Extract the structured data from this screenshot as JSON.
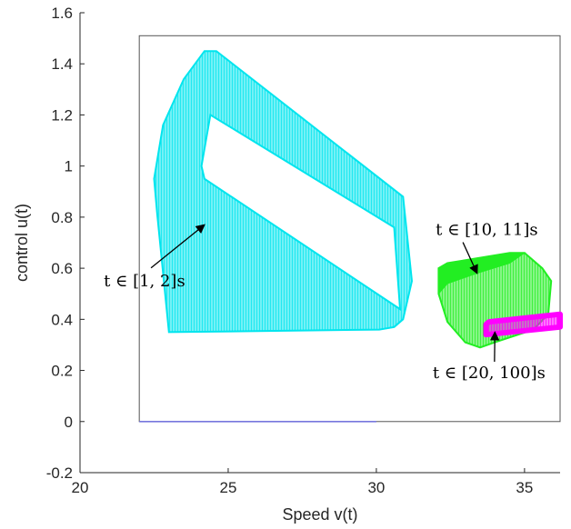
{
  "chart_data": {
    "type": "area",
    "title": "",
    "xlabel": "Speed v(t)",
    "ylabel": "control u(t)",
    "xlim": [
      20,
      36.2
    ],
    "ylim": [
      -0.2,
      1.6
    ],
    "xticks": [
      20,
      25,
      30,
      35
    ],
    "yticks": [
      -0.2,
      0,
      0.2,
      0.4,
      0.6,
      0.8,
      1,
      1.2,
      1.4,
      1.6
    ],
    "grid": false,
    "inner_box": {
      "x": [
        22,
        36.2
      ],
      "y": [
        0,
        1.51
      ]
    },
    "regions": [
      {
        "label": "t ∈ [1, 2]s",
        "color": "#00e5ee",
        "outline": [
          [
            22.6,
            0.82
          ],
          [
            22.5,
            0.95
          ],
          [
            22.8,
            1.16
          ],
          [
            23.5,
            1.34
          ],
          [
            24.2,
            1.45
          ],
          [
            24.6,
            1.45
          ],
          [
            30.9,
            0.88
          ],
          [
            31.2,
            0.55
          ],
          [
            30.9,
            0.4
          ],
          [
            30.6,
            0.37
          ],
          [
            30.1,
            0.36
          ],
          [
            23.0,
            0.35
          ]
        ],
        "hole": [
          [
            24.1,
            1.0
          ],
          [
            24.2,
            0.95
          ],
          [
            30.8,
            0.44
          ],
          [
            30.6,
            0.76
          ],
          [
            24.4,
            1.2
          ]
        ],
        "annotation_point": [
          24.2,
          0.77
        ],
        "label_position": [
          20.8,
          0.53
        ]
      },
      {
        "label": "t ∈ [10, 11]s",
        "color": "#22ee22",
        "outline": [
          [
            32.1,
            0.6
          ],
          [
            32.1,
            0.5
          ],
          [
            32.4,
            0.39
          ],
          [
            33.0,
            0.31
          ],
          [
            33.5,
            0.29
          ],
          [
            34.0,
            0.31
          ],
          [
            35.3,
            0.36
          ],
          [
            35.8,
            0.42
          ],
          [
            35.9,
            0.55
          ],
          [
            35.6,
            0.6
          ],
          [
            35.0,
            0.66
          ],
          [
            34.5,
            0.66
          ],
          [
            32.4,
            0.62
          ]
        ],
        "band_point": [
          33.4,
          0.62
        ],
        "annotation_point": [
          33.4,
          0.58
        ],
        "label_position": [
          32.0,
          0.73
        ]
      },
      {
        "label": "t ∈ [20, 100]s",
        "color": "#ff00ff",
        "outline": [
          [
            33.7,
            0.38
          ],
          [
            33.7,
            0.34
          ],
          [
            36.2,
            0.37
          ],
          [
            36.2,
            0.42
          ],
          [
            33.8,
            0.39
          ]
        ],
        "annotation_point": [
          34.0,
          0.35
        ],
        "label_position": [
          31.9,
          0.17
        ]
      }
    ],
    "baseline": {
      "x": [
        22,
        30
      ],
      "y": 0,
      "color": "#7777dd"
    }
  }
}
